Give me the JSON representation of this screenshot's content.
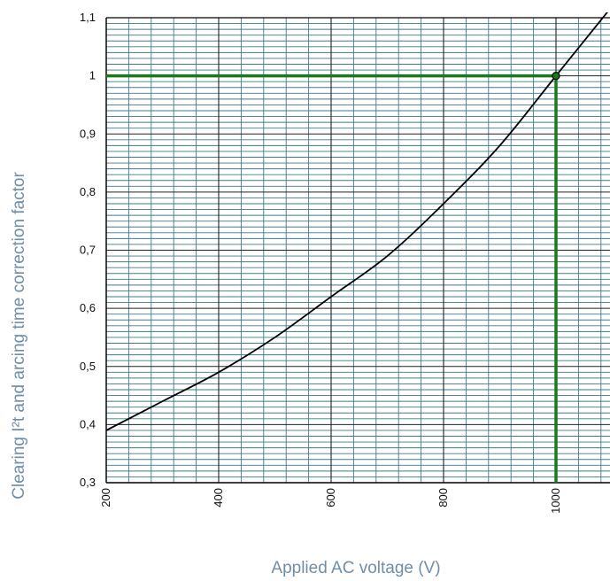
{
  "chart_data": {
    "type": "line",
    "title": "",
    "xlabel": "Applied AC voltage (V)",
    "ylabel": "Clearing I²t and arcing time correction factor",
    "xlim": [
      200,
      1100
    ],
    "ylim": [
      0.3,
      1.1
    ],
    "grid": true,
    "x_ticks": [
      200,
      400,
      600,
      800,
      1000
    ],
    "x_tick_labels": [
      "200",
      "400",
      "600",
      "800",
      "1000"
    ],
    "y_ticks": [
      0.3,
      0.4,
      0.5,
      0.6,
      0.7,
      0.8,
      0.9,
      1.0,
      1.1
    ],
    "y_tick_labels": [
      "0,3",
      "0,4",
      "0,5",
      "0,6",
      "0,7",
      "0,8",
      "0,9",
      "1",
      "1,1"
    ],
    "series": [
      {
        "x": [
          200,
          300,
          400,
          500,
          600,
          700,
          800,
          900,
          1000,
          1100
        ],
        "values": [
          0.39,
          0.44,
          0.49,
          0.55,
          0.62,
          0.69,
          0.78,
          0.88,
          1.0,
          1.12
        ]
      }
    ],
    "reference": {
      "x": 1000,
      "y": 1.0
    },
    "colors": {
      "grid_minor": "#3f7a8a",
      "grid_major": "#222222",
      "curve": "#000000",
      "reference": "#1a7a1a",
      "axis_title": "#6f8ea8"
    }
  }
}
